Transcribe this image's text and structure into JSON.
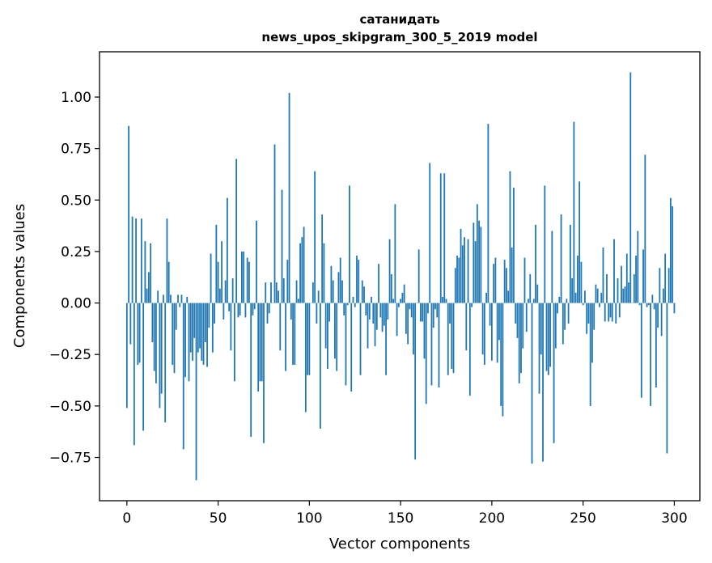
{
  "chart_data": {
    "type": "bar",
    "title_lines": [
      "сатанидать",
      "news_upos_skipgram_300_5_2019 model"
    ],
    "xlabel": "Vector components",
    "ylabel": "Components values",
    "xlim": [
      -15,
      314
    ],
    "ylim": [
      -0.96,
      1.22
    ],
    "xticks": [
      0,
      50,
      100,
      150,
      200,
      250,
      300
    ],
    "xtick_labels": [
      "0",
      "50",
      "100",
      "150",
      "200",
      "250",
      "300"
    ],
    "yticks": [
      -0.75,
      -0.5,
      -0.25,
      0.0,
      0.25,
      0.5,
      0.75,
      1.0
    ],
    "ytick_labels": [
      "−0.75",
      "−0.50",
      "−0.25",
      "0.00",
      "0.25",
      "0.50",
      "0.75",
      "1.00"
    ],
    "bar_color": "#1f77b4",
    "grid": false,
    "values": [
      -0.51,
      0.86,
      -0.2,
      0.42,
      -0.69,
      0.41,
      -0.3,
      -0.29,
      0.41,
      -0.62,
      0.3,
      0.07,
      0.15,
      0.29,
      -0.19,
      -0.33,
      -0.39,
      0.06,
      -0.51,
      -0.44,
      0.04,
      -0.58,
      0.41,
      0.2,
      0.04,
      -0.3,
      -0.34,
      -0.13,
      0.04,
      -0.02,
      0.04,
      -0.71,
      -0.36,
      0.03,
      -0.38,
      -0.24,
      -0.28,
      -0.17,
      -0.86,
      -0.24,
      -0.22,
      -0.28,
      -0.3,
      -0.19,
      -0.31,
      -0.12,
      0.24,
      -0.24,
      -0.1,
      0.38,
      0.2,
      0.07,
      0.3,
      -0.08,
      0.11,
      0.51,
      -0.04,
      -0.23,
      0.12,
      -0.38,
      0.7,
      -0.07,
      -0.06,
      0.25,
      0.25,
      -0.07,
      0.22,
      0.2,
      -0.65,
      -0.06,
      -0.03,
      0.4,
      -0.43,
      -0.38,
      -0.38,
      -0.68,
      0.1,
      -0.1,
      -0.05,
      0.1,
      0.0,
      0.77,
      0.1,
      0.06,
      -0.23,
      0.55,
      0.12,
      -0.33,
      0.21,
      1.02,
      -0.08,
      -0.3,
      -0.3,
      0.11,
      0.02,
      0.29,
      0.32,
      0.37,
      -0.53,
      -0.35,
      -0.35,
      0.0,
      0.1,
      0.64,
      -0.1,
      0.06,
      -0.61,
      0.43,
      0.29,
      -0.22,
      -0.32,
      -0.09,
      0.18,
      0.11,
      -0.27,
      -0.33,
      0.15,
      0.22,
      0.11,
      -0.06,
      -0.4,
      -0.01,
      0.57,
      -0.43,
      0.03,
      -0.02,
      0.23,
      0.21,
      -0.35,
      0.11,
      0.08,
      -0.06,
      -0.22,
      -0.08,
      0.03,
      -0.1,
      -0.21,
      -0.13,
      0.19,
      -0.07,
      -0.14,
      -0.11,
      -0.35,
      -0.08,
      0.31,
      0.14,
      0.02,
      0.48,
      -0.16,
      -0.02,
      0.02,
      0.05,
      0.09,
      -0.15,
      -0.2,
      -0.03,
      -0.07,
      -0.25,
      -0.76,
      0.0,
      0.26,
      -0.09,
      -0.09,
      -0.27,
      -0.49,
      -0.05,
      0.68,
      -0.4,
      -0.12,
      -0.03,
      -0.07,
      -0.41,
      0.63,
      0.03,
      0.63,
      0.02,
      -0.35,
      -0.1,
      -0.32,
      -0.34,
      0.17,
      0.23,
      0.22,
      0.36,
      0.28,
      0.32,
      -0.23,
      0.31,
      -0.45,
      -0.02,
      0.39,
      0.3,
      0.48,
      0.4,
      0.37,
      -0.25,
      -0.3,
      0.05,
      0.87,
      -0.11,
      -0.28,
      0.19,
      0.22,
      -0.29,
      -0.18,
      -0.5,
      -0.55,
      0.21,
      0.17,
      0.06,
      0.64,
      0.27,
      0.56,
      -0.1,
      -0.17,
      -0.39,
      -0.34,
      -0.22,
      0.22,
      -0.14,
      0.02,
      0.14,
      -0.78,
      0.02,
      0.38,
      0.09,
      -0.44,
      -0.25,
      -0.77,
      0.57,
      -0.33,
      -0.35,
      -0.31,
      0.35,
      -0.68,
      -0.22,
      -0.05,
      0.03,
      0.43,
      -0.2,
      -0.13,
      0.02,
      -0.1,
      0.38,
      0.12,
      0.88,
      0.05,
      0.23,
      0.59,
      0.2,
      -0.01,
      0.06,
      -0.15,
      -0.1,
      -0.5,
      -0.29,
      -0.13,
      0.09,
      0.07,
      -0.02,
      0.05,
      0.27,
      -0.09,
      0.14,
      -0.09,
      -0.07,
      -0.09,
      0.31,
      -0.1,
      0.12,
      -0.07,
      0.18,
      0.07,
      0.08,
      0.24,
      0.1,
      1.12,
      0.0,
      0.14,
      0.23,
      0.35,
      -0.01,
      -0.46,
      0.26,
      0.72,
      -0.02,
      -0.01,
      -0.5,
      0.04,
      -0.03,
      -0.41,
      -0.12,
      0.17,
      -0.16,
      0.07,
      0.24,
      -0.73,
      0.17,
      0.51,
      0.47,
      -0.05
    ]
  }
}
